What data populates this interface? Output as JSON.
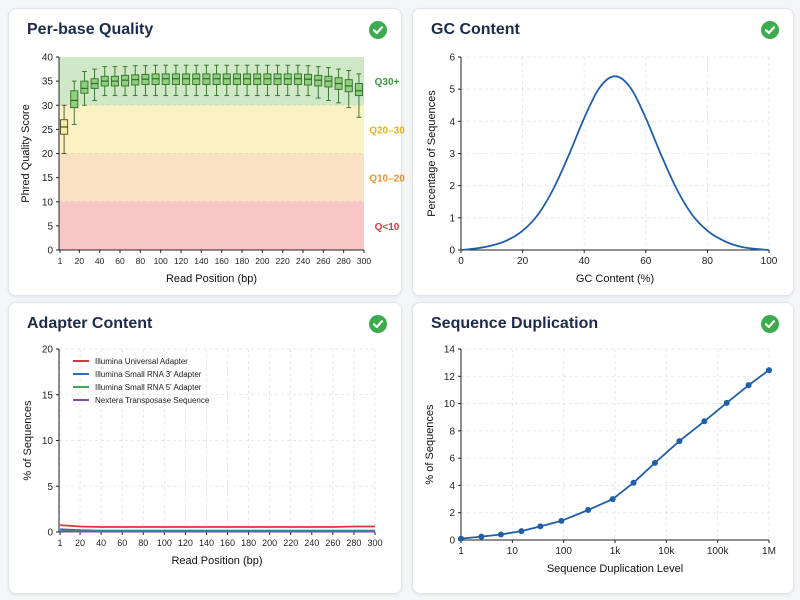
{
  "panels": {
    "quality": {
      "title": "Per-base Quality",
      "status_icon": "check-circle-icon",
      "status_color": "#3cab4e"
    },
    "gc": {
      "title": "GC Content",
      "status_icon": "check-circle-icon",
      "status_color": "#3cab4e"
    },
    "adapter": {
      "title": "Adapter Content",
      "status_icon": "check-circle-icon",
      "status_color": "#3cab4e"
    },
    "duplication": {
      "title": "Sequence Duplication",
      "status_icon": "check-circle-icon",
      "status_color": "#3cab4e"
    }
  },
  "chart_data": [
    {
      "type": "box",
      "title": "Per-base Quality",
      "xlabel": "Read Position (bp)",
      "ylabel": "Phred Quality Score",
      "xlim": [
        0,
        300
      ],
      "ylim": [
        0,
        40
      ],
      "xticks": [
        1,
        20,
        40,
        60,
        80,
        100,
        120,
        140,
        160,
        180,
        200,
        220,
        240,
        260,
        280,
        300
      ],
      "yticks": [
        0,
        5,
        10,
        15,
        20,
        25,
        30,
        35,
        40
      ],
      "zones": [
        {
          "label": "Q30+",
          "from": 30,
          "to": 40,
          "color": "#cfe8c5",
          "label_color": "#3a9a3a"
        },
        {
          "label": "Q20–30",
          "from": 20,
          "to": 30,
          "color": "#fbf1c2",
          "label_color": "#e3b321"
        },
        {
          "label": "Q10–20",
          "from": 10,
          "to": 20,
          "color": "#fbe1c3",
          "label_color": "#e8932a"
        },
        {
          "label": "Q<10",
          "from": 0,
          "to": 10,
          "color": "#f9c6c6",
          "label_color": "#d83a3a"
        }
      ],
      "boxes": [
        {
          "x": 5,
          "low": 20,
          "q1": 24,
          "median": 25.5,
          "q3": 27,
          "high": 30
        },
        {
          "x": 15,
          "low": 26,
          "q1": 29.5,
          "median": 31,
          "q3": 33,
          "high": 35
        },
        {
          "x": 25,
          "low": 30,
          "q1": 32.5,
          "median": 33.5,
          "q3": 35,
          "high": 37
        },
        {
          "x": 35,
          "low": 31,
          "q1": 33.5,
          "median": 34.5,
          "q3": 35.5,
          "high": 37.5
        },
        {
          "x": 45,
          "low": 32,
          "q1": 34,
          "median": 35,
          "q3": 36,
          "high": 38
        },
        {
          "x": 55,
          "low": 32,
          "q1": 34,
          "median": 35,
          "q3": 36,
          "high": 38
        },
        {
          "x": 65,
          "low": 32,
          "q1": 34,
          "median": 35.2,
          "q3": 36.2,
          "high": 38
        },
        {
          "x": 75,
          "low": 32,
          "q1": 34.2,
          "median": 35.3,
          "q3": 36.3,
          "high": 38.2
        },
        {
          "x": 85,
          "low": 32,
          "q1": 34.3,
          "median": 35.4,
          "q3": 36.4,
          "high": 38.2
        },
        {
          "x": 95,
          "low": 32,
          "q1": 34.3,
          "median": 35.5,
          "q3": 36.5,
          "high": 38.3
        },
        {
          "x": 105,
          "low": 32,
          "q1": 34.3,
          "median": 35.5,
          "q3": 36.5,
          "high": 38.3
        },
        {
          "x": 115,
          "low": 32,
          "q1": 34.3,
          "median": 35.5,
          "q3": 36.5,
          "high": 38.3
        },
        {
          "x": 125,
          "low": 32,
          "q1": 34.3,
          "median": 35.5,
          "q3": 36.5,
          "high": 38.3
        },
        {
          "x": 135,
          "low": 32,
          "q1": 34.3,
          "median": 35.5,
          "q3": 36.5,
          "high": 38.3
        },
        {
          "x": 145,
          "low": 32,
          "q1": 34.3,
          "median": 35.5,
          "q3": 36.5,
          "high": 38.3
        },
        {
          "x": 155,
          "low": 32,
          "q1": 34.3,
          "median": 35.5,
          "q3": 36.5,
          "high": 38.3
        },
        {
          "x": 165,
          "low": 32,
          "q1": 34.3,
          "median": 35.5,
          "q3": 36.5,
          "high": 38.3
        },
        {
          "x": 175,
          "low": 32,
          "q1": 34.3,
          "median": 35.5,
          "q3": 36.5,
          "high": 38.3
        },
        {
          "x": 185,
          "low": 32,
          "q1": 34.3,
          "median": 35.5,
          "q3": 36.5,
          "high": 38.3
        },
        {
          "x": 195,
          "low": 32,
          "q1": 34.3,
          "median": 35.5,
          "q3": 36.5,
          "high": 38.3
        },
        {
          "x": 205,
          "low": 32,
          "q1": 34.3,
          "median": 35.5,
          "q3": 36.5,
          "high": 38.3
        },
        {
          "x": 215,
          "low": 32,
          "q1": 34.3,
          "median": 35.5,
          "q3": 36.5,
          "high": 38.3
        },
        {
          "x": 225,
          "low": 32,
          "q1": 34.3,
          "median": 35.5,
          "q3": 36.5,
          "high": 38.3
        },
        {
          "x": 235,
          "low": 32,
          "q1": 34.3,
          "median": 35.5,
          "q3": 36.5,
          "high": 38.3
        },
        {
          "x": 245,
          "low": 32,
          "q1": 34.2,
          "median": 35.4,
          "q3": 36.4,
          "high": 38.2
        },
        {
          "x": 255,
          "low": 31.5,
          "q1": 34,
          "median": 35.2,
          "q3": 36.2,
          "high": 38
        },
        {
          "x": 265,
          "low": 31,
          "q1": 33.8,
          "median": 35,
          "q3": 36,
          "high": 37.8
        },
        {
          "x": 275,
          "low": 30.5,
          "q1": 33.3,
          "median": 34.5,
          "q3": 35.7,
          "high": 37.5
        },
        {
          "x": 285,
          "low": 29.5,
          "q1": 32.8,
          "median": 34,
          "q3": 35.3,
          "high": 37.2
        },
        {
          "x": 295,
          "low": 27.5,
          "q1": 32,
          "median": 33,
          "q3": 34.5,
          "high": 36.5
        }
      ],
      "box_colors": {
        "normal_fill": "#8fd07a",
        "normal_stroke": "#2f6b2a",
        "first_fill": "#f7eda0",
        "first_stroke": "#4a4a2a"
      }
    },
    {
      "type": "line",
      "title": "GC Content",
      "xlabel": "GC Content (%)",
      "ylabel": "Percentage of Sequences",
      "xlim": [
        0,
        100
      ],
      "ylim": [
        0,
        6
      ],
      "xticks": [
        0,
        20,
        40,
        60,
        80,
        100
      ],
      "yticks": [
        0,
        1,
        2,
        3,
        4,
        5,
        6
      ],
      "grid": true,
      "series": [
        {
          "color": "#1f5fa8",
          "x": [
            0,
            5,
            10,
            15,
            20,
            25,
            30,
            35,
            40,
            45,
            50,
            55,
            60,
            65,
            70,
            75,
            80,
            85,
            90,
            95,
            100
          ],
          "values": [
            0.0,
            0.05,
            0.14,
            0.3,
            0.6,
            1.1,
            1.9,
            2.95,
            4.1,
            5.05,
            5.4,
            5.05,
            4.1,
            2.95,
            1.9,
            1.1,
            0.6,
            0.3,
            0.12,
            0.04,
            0.0
          ]
        }
      ]
    },
    {
      "type": "line",
      "title": "Adapter Content",
      "xlabel": "Read Position (bp)",
      "ylabel": "% of Sequences",
      "xlim": [
        0,
        300
      ],
      "ylim": [
        0,
        20
      ],
      "xticks": [
        1,
        20,
        40,
        60,
        80,
        100,
        120,
        140,
        160,
        180,
        200,
        220,
        240,
        260,
        280,
        300
      ],
      "yticks": [
        0,
        5,
        10,
        15,
        20
      ],
      "grid": true,
      "legend": "top-left",
      "series": [
        {
          "name": "Illumina Universal Adapter",
          "color": "#d23a3a",
          "x": [
            1,
            20,
            40,
            60,
            80,
            100,
            120,
            140,
            160,
            180,
            200,
            220,
            240,
            260,
            280,
            300
          ],
          "values": [
            0.75,
            0.6,
            0.55,
            0.55,
            0.55,
            0.55,
            0.55,
            0.55,
            0.55,
            0.55,
            0.55,
            0.55,
            0.55,
            0.55,
            0.6,
            0.6
          ]
        },
        {
          "name": "Illumina Small RNA 3' Adapter",
          "color": "#2a6fb8",
          "x": [
            1,
            20,
            40,
            60,
            80,
            100,
            120,
            140,
            160,
            180,
            200,
            220,
            240,
            260,
            280,
            300
          ],
          "values": [
            0.3,
            0.2,
            0.15,
            0.15,
            0.15,
            0.15,
            0.15,
            0.15,
            0.15,
            0.15,
            0.15,
            0.15,
            0.15,
            0.15,
            0.15,
            0.15
          ]
        },
        {
          "name": "Illumina Small RNA 5' Adapter",
          "color": "#3cab4e",
          "x": [
            1,
            20,
            40,
            60,
            80,
            100,
            120,
            140,
            160,
            180,
            200,
            220,
            240,
            260,
            280,
            300
          ],
          "values": [
            0.1,
            0.08,
            0.08,
            0.08,
            0.08,
            0.08,
            0.08,
            0.08,
            0.08,
            0.08,
            0.08,
            0.08,
            0.08,
            0.08,
            0.08,
            0.08
          ]
        },
        {
          "name": "Nextera Transposase Sequence",
          "color": "#7a4fb0",
          "x": [
            1,
            20,
            40,
            60,
            80,
            100,
            120,
            140,
            160,
            180,
            200,
            220,
            240,
            260,
            280,
            300
          ],
          "values": [
            0.05,
            0.04,
            0.04,
            0.04,
            0.04,
            0.04,
            0.04,
            0.04,
            0.04,
            0.04,
            0.04,
            0.04,
            0.04,
            0.04,
            0.04,
            0.04
          ]
        }
      ]
    },
    {
      "type": "line",
      "title": "Sequence Duplication",
      "xlabel": "Sequence Duplication Level",
      "ylabel": "% of Sequences",
      "xscale": "log",
      "xlim": [
        1,
        1000000
      ],
      "ylim": [
        0,
        14
      ],
      "xticks": [
        1,
        10,
        100,
        1000,
        10000,
        100000,
        1000000
      ],
      "xticklabels": [
        "1",
        "10",
        "100",
        "1k",
        "10k",
        "100k",
        "1M"
      ],
      "yticks": [
        0,
        2,
        4,
        6,
        8,
        10,
        12,
        14
      ],
      "grid": true,
      "markers": true,
      "series": [
        {
          "color": "#1f5fa8",
          "x": [
            1,
            2.5,
            6,
            15,
            35,
            90,
            300,
            900,
            2300,
            6000,
            18000,
            55000,
            150000,
            400000,
            1000000
          ],
          "values": [
            0.1,
            0.25,
            0.4,
            0.65,
            1.0,
            1.4,
            2.2,
            3.0,
            4.2,
            5.65,
            7.25,
            8.7,
            10.05,
            11.35,
            12.45
          ]
        }
      ]
    }
  ]
}
